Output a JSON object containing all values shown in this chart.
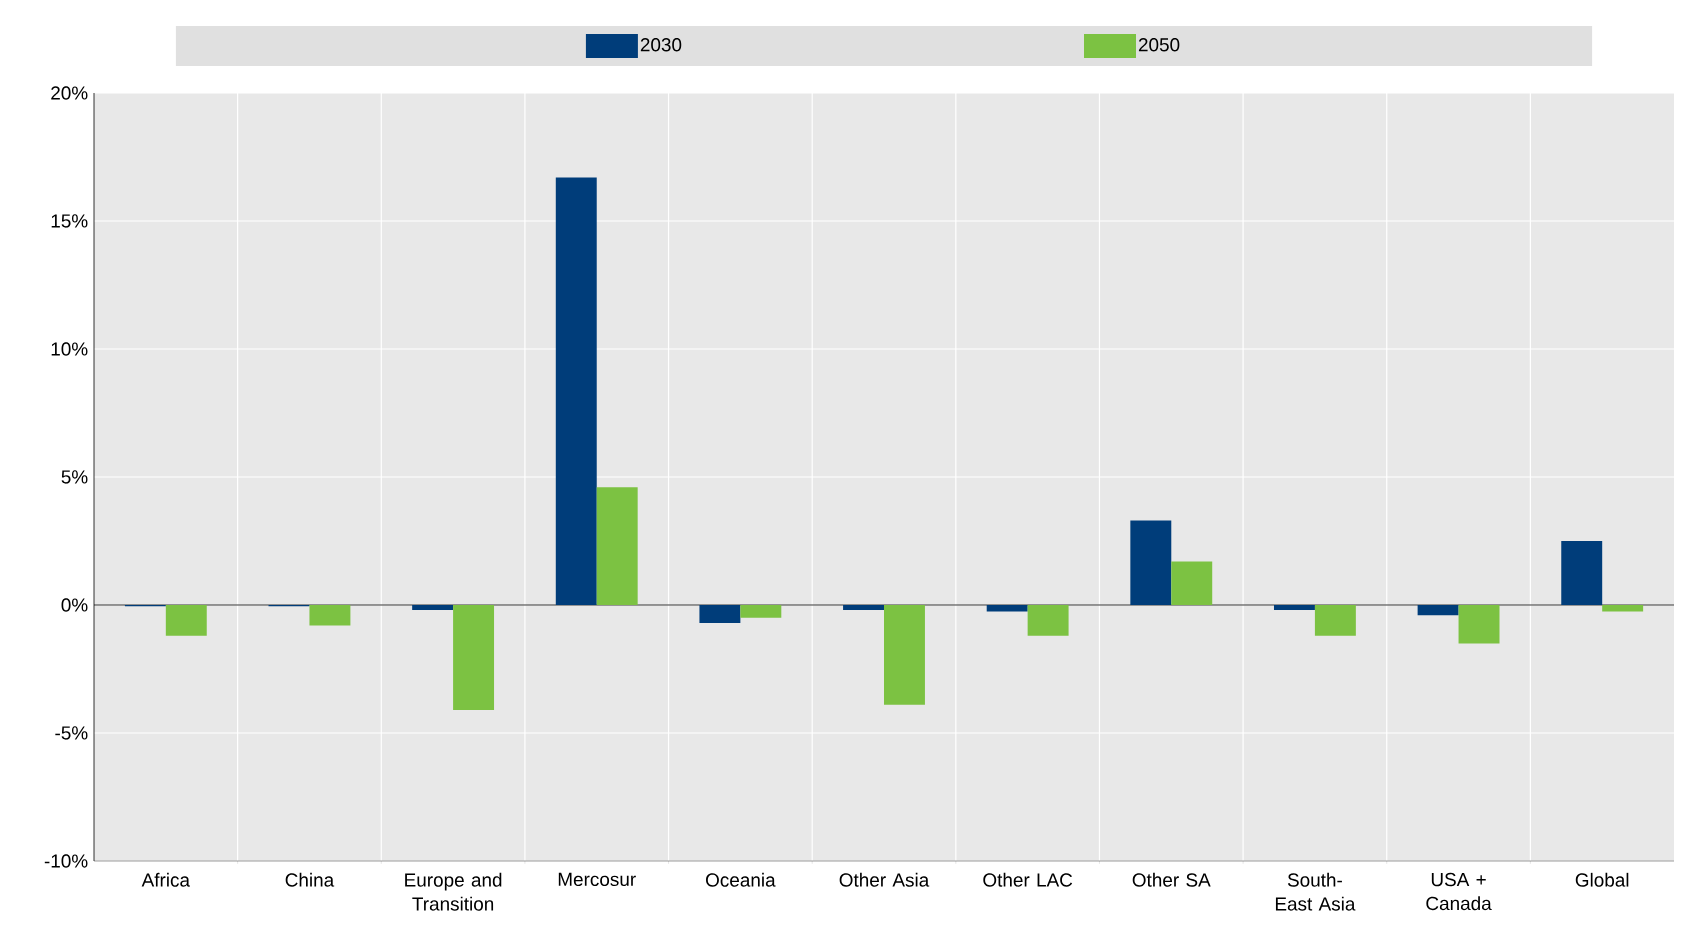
{
  "chart_data": {
    "type": "bar",
    "categories": [
      "Africa",
      "China",
      "Europe and Transition",
      "Mercosur",
      "Oceania",
      "Other Asia",
      "Other LAC",
      "Other SA",
      "South-East Asia",
      "USA + Canada",
      "Global"
    ],
    "series": [
      {
        "name": "2030",
        "color": "#003d7a",
        "values": [
          -0.05,
          -0.05,
          -0.2,
          16.7,
          -0.7,
          -0.2,
          -0.25,
          3.3,
          -0.2,
          -0.4,
          2.5
        ]
      },
      {
        "name": "2050",
        "color": "#7cc242",
        "values": [
          -1.2,
          -0.8,
          -4.1,
          4.6,
          -0.5,
          -3.9,
          -1.2,
          1.7,
          -1.2,
          -1.5,
          -0.25
        ]
      }
    ],
    "ylim": [
      -10,
      20
    ],
    "yticks": [
      {
        "value": -10,
        "label": "-10%"
      },
      {
        "value": -5,
        "label": "-5%"
      },
      {
        "value": 0,
        "label": "0%"
      },
      {
        "value": 5,
        "label": "5%"
      },
      {
        "value": 10,
        "label": "10%"
      },
      {
        "value": 15,
        "label": "15%"
      },
      {
        "value": 20,
        "label": "20%"
      }
    ],
    "grid": "y",
    "legend": "top"
  }
}
